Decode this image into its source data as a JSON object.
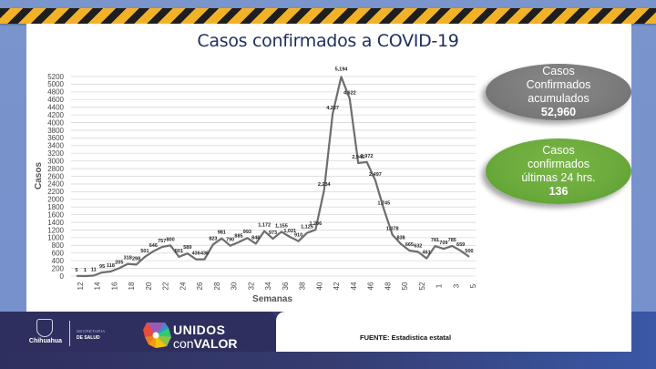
{
  "header": {
    "title": "Casos confirmados a COVID-19"
  },
  "summary": {
    "accumulated": {
      "line1": "Casos",
      "line2": "Confirmados",
      "line3": "acumulados",
      "value": "52,960",
      "color": "#7a7a7a"
    },
    "last24": {
      "line1": "Casos",
      "line2": "confirmados",
      "line3": "últimas 24 hrs.",
      "value": "136",
      "color": "#6aa93b"
    }
  },
  "footer": {
    "source": "FUENTE: Estadistica estatal",
    "logo_state": "Chihuahua",
    "dept_line1": "SECRETARIA",
    "dept_line2": "DE SALUD",
    "campaign_line1": "UNIDOS",
    "campaign_line2_a": "con",
    "campaign_line2_b": "VALOR"
  },
  "chart_data": {
    "type": "line",
    "title": "Casos confirmados a COVID-19",
    "xlabel": "Semanas",
    "ylabel": "Casos",
    "ylim": [
      0,
      5200
    ],
    "ytick_step": 200,
    "grid": true,
    "legend": "none",
    "line_color": "#6e6e6e",
    "x": [
      "12",
      "13",
      "14",
      "15",
      "16",
      "17",
      "18",
      "19",
      "20",
      "21",
      "22",
      "23",
      "24",
      "25",
      "26",
      "27",
      "28",
      "29",
      "30",
      "31",
      "32",
      "33",
      "34",
      "35",
      "36",
      "37",
      "38",
      "39",
      "40",
      "41",
      "42",
      "43",
      "44",
      "45",
      "46",
      "47",
      "48",
      "49",
      "50",
      "51",
      "52",
      "53",
      "1",
      "2",
      "3",
      "4",
      "5"
    ],
    "x_tick_labels": [
      "12",
      "14",
      "16",
      "18",
      "20",
      "22",
      "24",
      "26",
      "28",
      "30",
      "32",
      "34",
      "36",
      "38",
      "40",
      "42",
      "44",
      "46",
      "48",
      "50",
      "52",
      "1",
      "3",
      "5"
    ],
    "series": [
      {
        "name": "Casos",
        "values": [
          5,
          1,
          11,
          95,
          118,
          205,
          318,
          298,
          501,
          646,
          757,
          800,
          501,
          589,
          436,
          436,
          823,
          981,
          790,
          885,
          993,
          846,
          1172,
          973,
          1155,
          1021,
          910,
          1125,
          1206,
          2234,
          4227,
          5194,
          4622,
          2945,
          2972,
          2497,
          1745,
          1078,
          838,
          665,
          632,
          461,
          781,
          709,
          785,
          659,
          500
        ],
        "labels": [
          "5",
          "1",
          "11",
          "95",
          "118",
          "205",
          "318",
          "298",
          "501",
          "646",
          "757",
          "800",
          "501",
          "589",
          "436",
          "436",
          "823",
          "981",
          "790",
          "885",
          "993",
          "846",
          "1,172",
          "973",
          "1,155",
          "1,021",
          "910",
          "1,125",
          "1,206",
          "2,234",
          "4,227",
          "5,194",
          "4,622",
          "2,945",
          "2,972",
          "2,497",
          "1,745",
          "1,078",
          "838",
          "665",
          "632",
          "461",
          "781",
          "709",
          "785",
          "659",
          "500"
        ]
      }
    ]
  }
}
